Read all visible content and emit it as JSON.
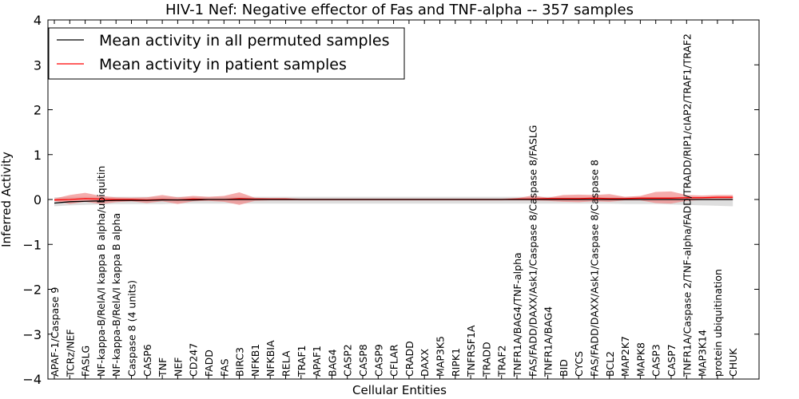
{
  "chart_data": {
    "type": "line",
    "title": "HIV-1 Nef: Negative effector of Fas and TNF-alpha -- 357 samples",
    "xlabel": "Cellular Entities",
    "ylabel": "Inferred Activity",
    "ylim": [
      -4,
      4
    ],
    "yticks": [
      -4,
      -3,
      -2,
      -1,
      0,
      1,
      2,
      3,
      4
    ],
    "ytick_labels": [
      "−4",
      "−3",
      "−2",
      "−1",
      "0",
      "1",
      "2",
      "3",
      "4"
    ],
    "grid": false,
    "legend_position": "top-left",
    "categories": [
      "APAF-1/Caspase 9",
      "TCRz/NEF",
      "FASLG",
      "NF-kappa-B/RelA/I kappa B alpha/ubiquitin",
      "NF-kappa-B/RelA/I kappa B alpha",
      "Caspase 8 (4 units)",
      "CASP6",
      "TNF",
      "NEF",
      "CD247",
      "FADD",
      "FAS",
      "BIRC3",
      "NFKB1",
      "NFKBIA",
      "RELA",
      "TRAF1",
      "APAF1",
      "BAG4",
      "CASP2",
      "CASP8",
      "CASP9",
      "CFLAR",
      "CRADD",
      "DAXX",
      "MAP3K5",
      "RIPK1",
      "TNFRSF1A",
      "TRADD",
      "TRAF2",
      "TNFR1A/BAG4/TNF-alpha",
      "FAS/FADD/DAXX/Ask1/Caspase 8/Caspase 8/FASLG",
      "TNFR1A/BAG4",
      "BID",
      "CYCS",
      "FAS/FADD/DAXX/Ask1/Caspase 8/Caspase 8",
      "BCL2",
      "MAP2K7",
      "MAPK8",
      "CASP3",
      "CASP7",
      "TNFR1A/Caspase 2/TNF-alpha/FADD/TRADD/RIP1/cIAP2/TRAF1/TRAF2",
      "MAP3K14",
      "protein ubiquitination",
      "CHUK"
    ],
    "series": [
      {
        "name": "Mean activity in all permuted samples",
        "color": "#000000",
        "band_color": "#d8d8d8",
        "values": [
          -0.08,
          -0.05,
          -0.04,
          -0.03,
          -0.02,
          -0.02,
          -0.02,
          -0.01,
          -0.01,
          -0.01,
          0,
          0,
          0,
          0,
          0,
          0,
          0,
          0,
          0,
          0,
          0,
          0,
          0,
          0,
          0,
          0,
          0,
          0,
          0,
          0,
          0,
          0,
          0,
          0,
          0,
          0,
          0,
          0,
          0,
          0,
          0,
          0,
          0,
          0,
          0
        ],
        "band_lower": [
          -0.15,
          -0.13,
          -0.12,
          -0.11,
          -0.1,
          -0.1,
          -0.1,
          -0.1,
          -0.09,
          -0.09,
          -0.09,
          -0.09,
          -0.09,
          -0.09,
          -0.09,
          -0.09,
          -0.09,
          -0.09,
          -0.09,
          -0.09,
          -0.09,
          -0.09,
          -0.09,
          -0.09,
          -0.09,
          -0.09,
          -0.09,
          -0.09,
          -0.09,
          -0.09,
          -0.09,
          -0.09,
          -0.09,
          -0.09,
          -0.09,
          -0.09,
          -0.09,
          -0.1,
          -0.1,
          -0.1,
          -0.11,
          -0.12,
          -0.13,
          -0.14,
          -0.15
        ],
        "band_upper": [
          0.05,
          0.06,
          0.06,
          0.06,
          0.06,
          0.06,
          0.06,
          0.06,
          0.06,
          0.06,
          0.06,
          0.06,
          0.06,
          0.06,
          0.06,
          0.06,
          0.06,
          0.06,
          0.06,
          0.06,
          0.06,
          0.06,
          0.06,
          0.06,
          0.06,
          0.06,
          0.06,
          0.06,
          0.06,
          0.06,
          0.06,
          0.06,
          0.06,
          0.06,
          0.06,
          0.06,
          0.06,
          0.06,
          0.06,
          0.06,
          0.06,
          0.06,
          0.06,
          0.06,
          0.06
        ]
      },
      {
        "name": "Mean activity in patient samples",
        "color": "#ff0000",
        "band_color": "#f08080",
        "values": [
          -0.01,
          0,
          0.02,
          0.01,
          0,
          0,
          -0.01,
          0,
          -0.01,
          0.01,
          0,
          0,
          0.02,
          0.01,
          0.01,
          0.01,
          0,
          0,
          0,
          0,
          0,
          0,
          0,
          0,
          0,
          0,
          0,
          0,
          0,
          0,
          0.01,
          0.01,
          0.02,
          0.02,
          0.02,
          0.03,
          0.02,
          0.02,
          0.03,
          0.03,
          0.03,
          0.04,
          0.04,
          0.05,
          0.05
        ],
        "band_lower": [
          -0.03,
          -0.1,
          -0.05,
          -0.1,
          -0.06,
          -0.04,
          -0.08,
          -0.04,
          -0.1,
          -0.04,
          -0.03,
          -0.05,
          -0.12,
          -0.03,
          -0.02,
          -0.02,
          -0.02,
          -0.02,
          -0.02,
          -0.02,
          -0.02,
          -0.02,
          -0.02,
          -0.02,
          -0.02,
          -0.02,
          -0.02,
          -0.02,
          -0.02,
          -0.02,
          -0.02,
          -0.02,
          -0.03,
          -0.05,
          -0.06,
          -0.04,
          -0.05,
          -0.02,
          -0.02,
          -0.08,
          -0.09,
          -0.03,
          -0.01,
          -0.01,
          -0.01
        ],
        "band_upper": [
          0.02,
          0.1,
          0.15,
          0.08,
          0.05,
          0.04,
          0.05,
          0.1,
          0.05,
          0.08,
          0.06,
          0.08,
          0.16,
          0.04,
          0.03,
          0.03,
          0.02,
          0.02,
          0.02,
          0.02,
          0.02,
          0.02,
          0.02,
          0.02,
          0.02,
          0.02,
          0.02,
          0.02,
          0.02,
          0.02,
          0.03,
          0.09,
          0.04,
          0.1,
          0.11,
          0.1,
          0.12,
          0.06,
          0.08,
          0.17,
          0.18,
          0.1,
          0.09,
          0.1,
          0.1
        ]
      }
    ]
  }
}
